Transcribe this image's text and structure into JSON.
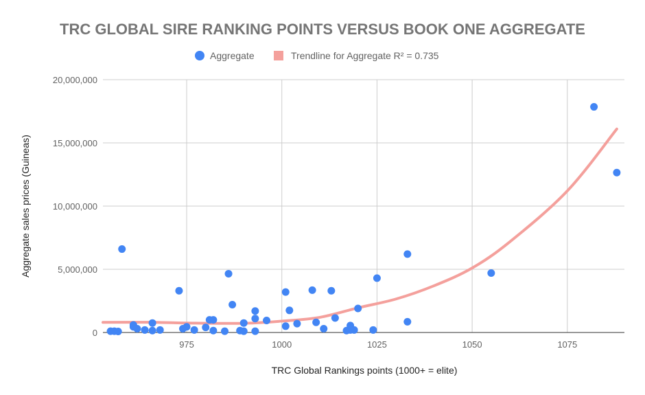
{
  "chart_data": {
    "type": "scatter",
    "title": "TRC GLOBAL SIRE RANKING POINTS VERSUS BOOK ONE AGGREGATE",
    "xlabel": "TRC Global Rankings points (1000+ = elite)",
    "ylabel": "Aggregate sales prices (Guineas)",
    "xlim": [
      953,
      1090
    ],
    "ylim": [
      0,
      20000000
    ],
    "xticks": [
      975,
      1000,
      1025,
      1050,
      1075
    ],
    "yticks": [
      0,
      5000000,
      10000000,
      15000000,
      20000000
    ],
    "xtick_labels": [
      "975",
      "1000",
      "1025",
      "1050",
      "1075"
    ],
    "ytick_labels": [
      "0",
      "5,000,000",
      "10,000,000",
      "15,000,000",
      "20,000,000"
    ],
    "grid": true,
    "legend_position": "top",
    "series": [
      {
        "name": "Aggregate",
        "color": "#4285f4",
        "points": [
          [
            955,
            100000
          ],
          [
            956,
            100000
          ],
          [
            957,
            80000
          ],
          [
            958,
            6600000
          ],
          [
            961,
            600000
          ],
          [
            961,
            450000
          ],
          [
            962,
            300000
          ],
          [
            964,
            200000
          ],
          [
            966,
            150000
          ],
          [
            966,
            750000
          ],
          [
            968,
            200000
          ],
          [
            973,
            3300000
          ],
          [
            974,
            300000
          ],
          [
            975,
            450000
          ],
          [
            977,
            200000
          ],
          [
            980,
            400000
          ],
          [
            981,
            1000000
          ],
          [
            982,
            1000000
          ],
          [
            982,
            150000
          ],
          [
            985,
            100000
          ],
          [
            986,
            4650000
          ],
          [
            987,
            2200000
          ],
          [
            989,
            150000
          ],
          [
            990,
            750000
          ],
          [
            990,
            100000
          ],
          [
            993,
            1700000
          ],
          [
            993,
            1100000
          ],
          [
            993,
            100000
          ],
          [
            996,
            950000
          ],
          [
            1001,
            3200000
          ],
          [
            1001,
            500000
          ],
          [
            1002,
            1750000
          ],
          [
            1004,
            700000
          ],
          [
            1008,
            3350000
          ],
          [
            1009,
            800000
          ],
          [
            1011,
            300000
          ],
          [
            1013,
            3300000
          ],
          [
            1014,
            1150000
          ],
          [
            1017,
            150000
          ],
          [
            1018,
            550000
          ],
          [
            1018,
            200000
          ],
          [
            1019,
            200000
          ],
          [
            1020,
            1900000
          ],
          [
            1024,
            200000
          ],
          [
            1025,
            4300000
          ],
          [
            1033,
            6200000
          ],
          [
            1033,
            850000
          ],
          [
            1055,
            4700000
          ],
          [
            1082,
            17850000
          ],
          [
            1088,
            12650000
          ]
        ]
      }
    ],
    "trendline": {
      "name": "Trendline for Aggregate R² = 0.735",
      "color": "#f4a09c",
      "x_range": [
        953,
        1088
      ],
      "points": [
        [
          953,
          800000
        ],
        [
          965,
          810000
        ],
        [
          975,
          750000
        ],
        [
          990,
          730000
        ],
        [
          1000,
          900000
        ],
        [
          1010,
          1200000
        ],
        [
          1020,
          1950000
        ],
        [
          1030,
          2650000
        ],
        [
          1040,
          3700000
        ],
        [
          1050,
          5100000
        ],
        [
          1060,
          7200000
        ],
        [
          1075,
          11200000
        ],
        [
          1088,
          16100000
        ]
      ]
    }
  }
}
